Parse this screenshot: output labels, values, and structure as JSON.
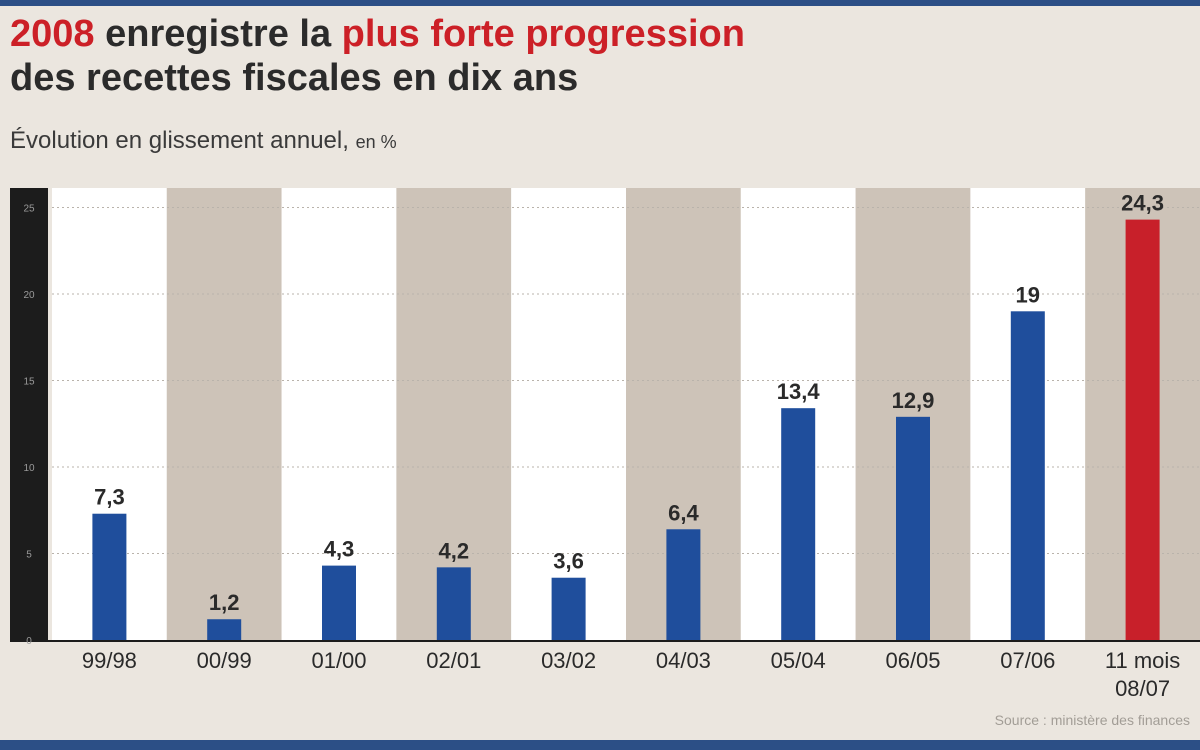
{
  "title": {
    "part1": "2008",
    "part2": " enregistre la ",
    "part3": "plus forte progression",
    "line2": "des recettes fiscales en dix ans"
  },
  "subtitle": {
    "text": "Évolution en glissement annuel, ",
    "unit": "en %"
  },
  "source": "Source : ministère des finances",
  "colors": {
    "bar": "#1f4e9c",
    "highlight": "#c8202a",
    "band_white": "#ffffff",
    "band_taupe": "#cdc3b8",
    "axis_bar": "#1c1c1c",
    "background": "#ebe6df"
  },
  "chart_data": {
    "type": "bar",
    "title": "2008 enregistre la plus forte progression des recettes fiscales en dix ans",
    "subtitle": "Évolution en glissement annuel, en %",
    "categories": [
      "99/98",
      "00/99",
      "01/00",
      "02/01",
      "03/02",
      "04/03",
      "05/04",
      "06/05",
      "07/06",
      "11 mois 08/07"
    ],
    "category_lines": [
      [
        "99/98"
      ],
      [
        "00/99"
      ],
      [
        "01/00"
      ],
      [
        "02/01"
      ],
      [
        "03/02"
      ],
      [
        "04/03"
      ],
      [
        "05/04"
      ],
      [
        "06/05"
      ],
      [
        "07/06"
      ],
      [
        "11 mois",
        "08/07"
      ]
    ],
    "values": [
      7.3,
      1.2,
      4.3,
      4.2,
      3.6,
      6.4,
      13.4,
      12.9,
      19,
      24.3
    ],
    "value_labels": [
      "7,3",
      "1,2",
      "4,3",
      "4,2",
      "3,6",
      "6,4",
      "13,4",
      "12,9",
      "19",
      "24,3"
    ],
    "highlight_index": 9,
    "yticks": [
      0,
      5,
      10,
      15,
      20,
      25
    ],
    "ylim": [
      0,
      25
    ],
    "ylabel": "",
    "xlabel": "",
    "grid": true,
    "legend": "none"
  }
}
